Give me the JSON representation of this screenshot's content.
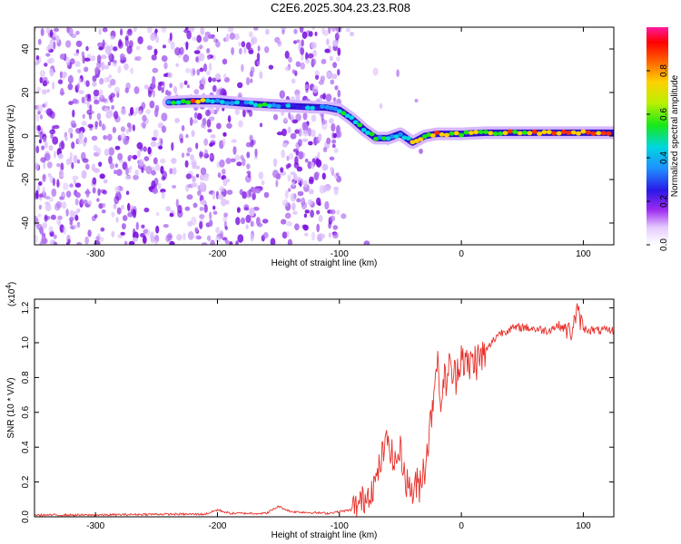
{
  "title": "C2E6.2025.304.23.23.R08",
  "chart_data": [
    {
      "type": "heatmap",
      "xlabel": "Height of straight line (km)",
      "ylabel": "Frequency (Hz)",
      "xlim": [
        -350,
        125
      ],
      "ylim": [
        -50,
        50
      ],
      "x_ticks": [
        -300,
        -200,
        -100,
        0,
        100
      ],
      "y_ticks": [
        -40,
        -20,
        0,
        20,
        40
      ],
      "colorbar": {
        "label": "Normalized spectral amplitude",
        "range": [
          0,
          1
        ],
        "ticks": [
          "0.0",
          "0.2",
          "0.4",
          "0.6",
          "0.8"
        ]
      },
      "track": [
        {
          "x": -240,
          "y": 15.5,
          "amp": 0.45
        },
        {
          "x": -220,
          "y": 16,
          "amp": 0.8
        },
        {
          "x": -200,
          "y": 16,
          "amp": 0.45
        },
        {
          "x": -180,
          "y": 15,
          "amp": 0.4
        },
        {
          "x": -165,
          "y": 14.5,
          "amp": 0.7
        },
        {
          "x": -150,
          "y": 14,
          "amp": 0.45
        },
        {
          "x": -130,
          "y": 13.5,
          "amp": 0.4
        },
        {
          "x": -110,
          "y": 13,
          "amp": 0.4
        },
        {
          "x": -100,
          "y": 12,
          "amp": 0.45
        },
        {
          "x": -90,
          "y": 8,
          "amp": 0.45
        },
        {
          "x": -80,
          "y": 3,
          "amp": 0.5
        },
        {
          "x": -70,
          "y": -1,
          "amp": 0.5
        },
        {
          "x": -60,
          "y": -1,
          "amp": 0.45
        },
        {
          "x": -50,
          "y": 1,
          "amp": 0.45
        },
        {
          "x": -40,
          "y": -3,
          "amp": 0.75
        },
        {
          "x": -30,
          "y": 0,
          "amp": 0.6
        },
        {
          "x": -20,
          "y": 1,
          "amp": 0.85
        },
        {
          "x": 0,
          "y": 1,
          "amp": 0.7
        },
        {
          "x": 20,
          "y": 1.5,
          "amp": 0.65
        },
        {
          "x": 40,
          "y": 1.5,
          "amp": 0.75
        },
        {
          "x": 60,
          "y": 1.5,
          "amp": 0.8
        },
        {
          "x": 80,
          "y": 1.5,
          "amp": 0.85
        },
        {
          "x": 100,
          "y": 1.5,
          "amp": 0.85
        },
        {
          "x": 125,
          "y": 1.5,
          "amp": 0.85
        }
      ]
    },
    {
      "type": "line",
      "xlabel": "Height of straight line (km)",
      "ylabel": "SNR (10 * V/V)",
      "multiplier_label": "(x10",
      "multiplier_exp": "4",
      "multiplier_close": ")",
      "xlim": [
        -350,
        125
      ],
      "ylim": [
        0,
        1.25
      ],
      "x_ticks": [
        -300,
        -200,
        -100,
        0,
        100
      ],
      "y_ticks": [
        "0.0",
        "0.2",
        "0.4",
        "0.6",
        "0.8",
        "1.0",
        "1.2"
      ],
      "series": [
        {
          "color": "#e8302a",
          "x": [
            -350,
            -300,
            -250,
            -210,
            -200,
            -190,
            -160,
            -150,
            -140,
            -110,
            -100,
            -90,
            -80,
            -70,
            -65,
            -60,
            -55,
            -50,
            -45,
            -40,
            -35,
            -30,
            -25,
            -20,
            -18,
            -15,
            -10,
            -5,
            0,
            5,
            10,
            15,
            20,
            25,
            30,
            40,
            50,
            60,
            70,
            80,
            90,
            95,
            100,
            110,
            125
          ],
          "y": [
            0.01,
            0.01,
            0.015,
            0.015,
            0.04,
            0.02,
            0.02,
            0.06,
            0.03,
            0.02,
            0.03,
            0.04,
            0.1,
            0.2,
            0.35,
            0.45,
            0.3,
            0.38,
            0.2,
            0.15,
            0.18,
            0.3,
            0.55,
            0.95,
            0.65,
            0.75,
            0.85,
            0.8,
            0.95,
            0.85,
            0.9,
            0.9,
            0.95,
            1.0,
            1.05,
            1.08,
            1.09,
            1.08,
            1.07,
            1.1,
            1.06,
            1.18,
            1.08,
            1.07,
            1.07
          ]
        }
      ]
    }
  ]
}
